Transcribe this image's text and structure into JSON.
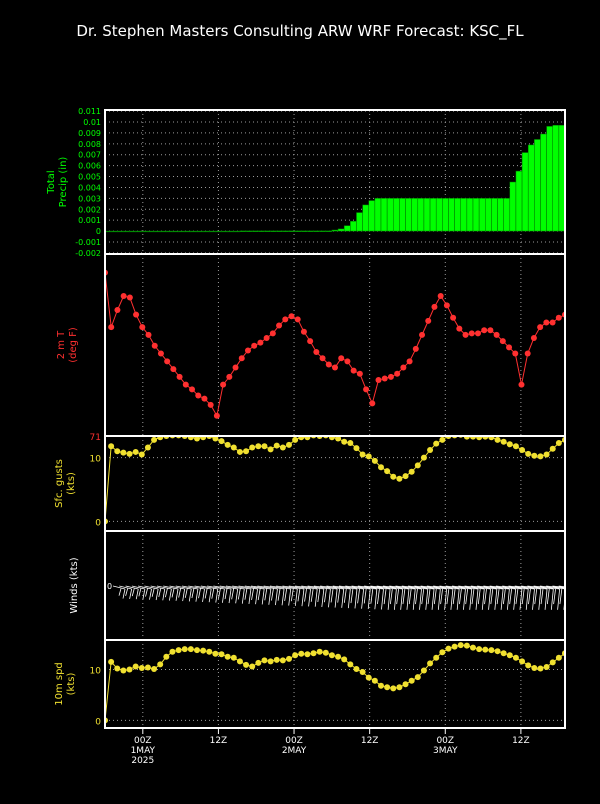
{
  "title": "Dr. Stephen Masters Consulting  ARW WRF Forecast: KSC_FL",
  "colors": {
    "background": "#000000",
    "frame": "#ffffff",
    "precip": "#00ff00",
    "temp": "#ff3030",
    "gust": "#f0e030",
    "wind": "#ffffff",
    "speed": "#f0e030"
  },
  "x_axis": {
    "ticks": [
      {
        "label": "00Z",
        "sub": [
          "1MAY",
          "2025"
        ],
        "hour": 6
      },
      {
        "label": "12Z",
        "sub": [],
        "hour": 18
      },
      {
        "label": "00Z",
        "sub": [
          "2MAY"
        ],
        "hour": 30
      },
      {
        "label": "12Z",
        "sub": [],
        "hour": 42
      },
      {
        "label": "00Z",
        "sub": [
          "3MAY"
        ],
        "hour": 54
      },
      {
        "label": "12Z",
        "sub": [],
        "hour": 66
      }
    ],
    "range_hours": [
      0,
      73
    ]
  },
  "chart_data": [
    {
      "type": "bar",
      "ylabel": "Total Precip (in)",
      "ylim": [
        -0.0021,
        0.0111
      ],
      "ytick_labels": [
        "0.011",
        "0.01",
        "0.009",
        "0.008",
        "0.007",
        "0.006",
        "0.005",
        "0.004",
        "0.003",
        "0.002",
        "0.001",
        "0",
        "-0.001",
        "-0.002"
      ],
      "grid": true,
      "values": [
        0,
        0,
        0,
        0,
        0,
        0,
        0,
        0,
        0,
        0,
        0,
        0,
        0,
        0,
        0,
        0,
        0,
        0,
        0,
        0,
        0,
        0,
        2e-05,
        2e-05,
        2e-05,
        2e-05,
        2e-05,
        2e-05,
        2e-05,
        2e-05,
        2e-05,
        2e-05,
        2e-05,
        2e-05,
        2e-05,
        2e-05,
        2e-05,
        0.0001,
        0.0002,
        0.0005,
        0.0009,
        0.0017,
        0.0024,
        0.0028,
        0.003,
        0.003,
        0.003,
        0.003,
        0.003,
        0.003,
        0.003,
        0.003,
        0.003,
        0.003,
        0.003,
        0.003,
        0.003,
        0.003,
        0.003,
        0.003,
        0.003,
        0.003,
        0.003,
        0.003,
        0.003,
        0.003,
        0.0045,
        0.0055,
        0.0072,
        0.0079,
        0.0084,
        0.0089,
        0.0096,
        0.0097,
        0.0097
      ]
    },
    {
      "type": "line",
      "ylabel": "2 m T (deg F)",
      "ytick_labels": [
        "71"
      ],
      "ylim": [
        69.8,
        81.5
      ],
      "values": [
        80.3,
        76.8,
        77.9,
        78.8,
        78.7,
        77.6,
        76.8,
        76.3,
        75.6,
        75.1,
        74.6,
        74.1,
        73.6,
        73.1,
        72.8,
        72.4,
        72.2,
        71.8,
        71.1,
        73.1,
        73.6,
        74.2,
        74.8,
        75.3,
        75.6,
        75.8,
        76.1,
        76.4,
        76.9,
        77.3,
        77.5,
        77.3,
        76.5,
        75.9,
        75.2,
        74.8,
        74.4,
        74.2,
        74.8,
        74.6,
        74.0,
        73.8,
        72.8,
        71.9,
        73.4,
        73.5,
        73.6,
        73.8,
        74.2,
        74.6,
        75.4,
        76.3,
        77.2,
        78.1,
        78.8,
        78.2,
        77.4,
        76.7,
        76.3,
        76.4,
        76.4,
        76.6,
        76.6,
        76.3,
        75.9,
        75.5,
        75.1,
        73.1,
        75.1,
        76.1,
        76.8,
        77.1,
        77.1,
        77.4,
        77.6
      ]
    },
    {
      "type": "line",
      "ylabel": "Sfc. gusts (kts)",
      "ytick_labels": [
        "10",
        "0"
      ],
      "ylim": [
        -1.5,
        13.4
      ],
      "values": [
        0,
        11.8,
        11,
        10.8,
        10.6,
        10.9,
        10.5,
        11.6,
        12.8,
        13.2,
        13.4,
        13.5,
        13.5,
        13.4,
        13.2,
        13.0,
        13.2,
        13.4,
        13.0,
        12.6,
        12.0,
        11.6,
        10.9,
        11.0,
        11.6,
        11.8,
        11.8,
        11.3,
        11.9,
        11.6,
        12.0,
        12.8,
        13.2,
        13.2,
        13.5,
        13.4,
        13.5,
        13.2,
        13.0,
        12.5,
        12.3,
        11.5,
        10.5,
        10.2,
        9.5,
        8.5,
        7.9,
        7.0,
        6.7,
        7.1,
        7.8,
        8.8,
        10.0,
        11.2,
        12.2,
        12.8,
        13.4,
        13.5,
        13.6,
        13.3,
        13.3,
        13.2,
        13.3,
        13.2,
        12.8,
        12.5,
        12.1,
        11.8,
        11.2,
        10.6,
        10.3,
        10.2,
        10.5,
        11.4,
        12.3,
        12.8
      ]
    },
    {
      "type": "line",
      "ylabel": "Winds (kts)",
      "note": "wind barbs"
    },
    {
      "type": "line",
      "ylabel": "10m spd (kts)",
      "ytick_labels": [
        "10",
        "0"
      ],
      "ylim": [
        -1.5,
        15.8
      ],
      "values": [
        0,
        11.5,
        10.2,
        9.8,
        10.0,
        10.6,
        10.3,
        10.4,
        10.1,
        11.0,
        12.5,
        13.5,
        13.8,
        14.0,
        14.0,
        13.8,
        13.7,
        13.5,
        13.1,
        13.0,
        12.5,
        12.3,
        11.6,
        10.9,
        10.6,
        11.3,
        11.8,
        11.6,
        11.9,
        11.8,
        12.1,
        12.8,
        13.1,
        13.0,
        13.2,
        13.5,
        13.3,
        12.8,
        12.5,
        12.0,
        11.0,
        10.1,
        9.5,
        8.4,
        7.8,
        6.8,
        6.5,
        6.3,
        6.5,
        7.1,
        7.8,
        8.5,
        9.8,
        11.2,
        12.3,
        13.4,
        14.1,
        14.5,
        14.8,
        14.7,
        14.3,
        14.0,
        13.9,
        13.8,
        13.6,
        13.2,
        12.8,
        12.3,
        11.6,
        10.8,
        10.3,
        10.2,
        10.5,
        11.4,
        12.3,
        13.2
      ]
    }
  ]
}
